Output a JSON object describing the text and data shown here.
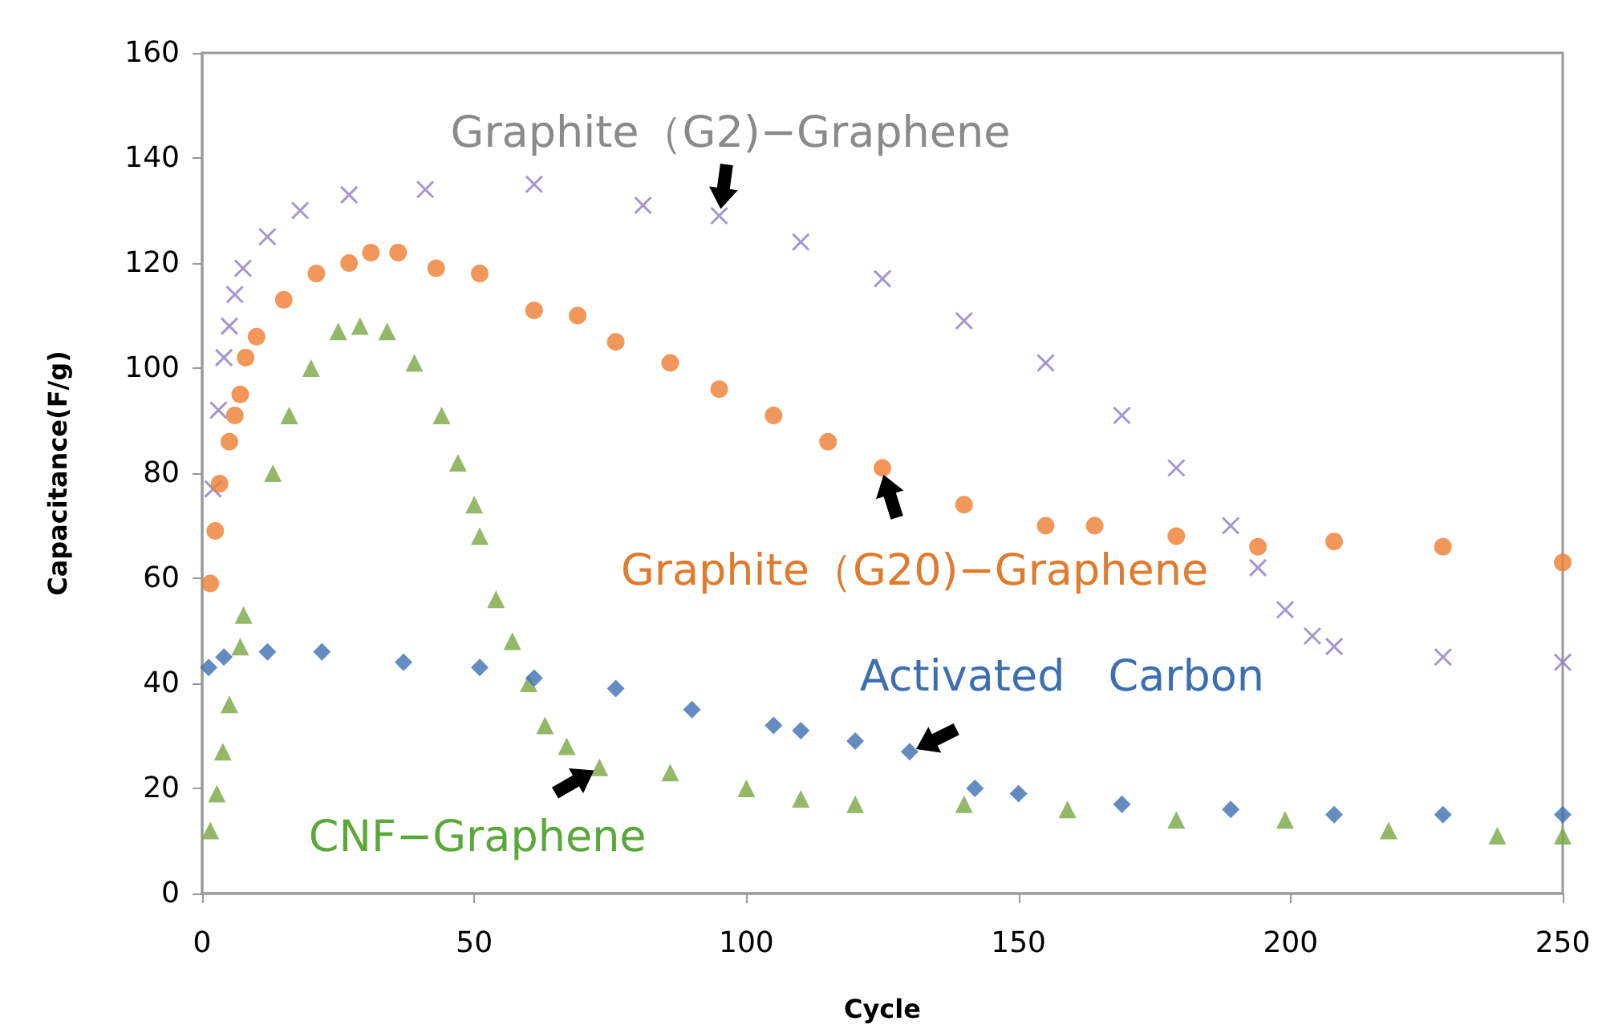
{
  "chart_data": {
    "type": "scatter",
    "xlabel": "Cycle",
    "ylabel": "Capacitance(F/g)",
    "xlim": [
      0,
      250
    ],
    "xticks": [
      0,
      50,
      100,
      150,
      200,
      250
    ],
    "ylim": [
      0,
      160
    ],
    "yticks": [
      0,
      20,
      40,
      60,
      80,
      100,
      120,
      140,
      160
    ],
    "grid": false,
    "series": [
      {
        "color": "#8e7cc3",
        "marker": "cross",
        "x": [
          2,
          3,
          4,
          5,
          6,
          7.5,
          12,
          18,
          27,
          41,
          61,
          81,
          95,
          110,
          125,
          140,
          155,
          169,
          179,
          189,
          194,
          199,
          204,
          208,
          228,
          250
        ],
        "values": [
          77,
          92,
          102,
          108,
          114,
          119,
          125,
          130,
          133,
          134,
          135,
          131,
          129,
          124,
          117,
          109,
          101,
          91,
          81,
          70,
          62,
          54,
          49,
          47,
          45,
          44
        ]
      },
      {
        "color": "#ed7d31",
        "marker": "circle",
        "x": [
          1.5,
          2.4,
          3.2,
          5,
          6,
          7,
          8,
          10,
          15,
          21,
          27,
          31,
          36,
          43,
          51,
          61,
          69,
          76,
          86,
          95,
          105,
          115,
          125,
          140,
          155,
          164,
          179,
          194,
          208,
          228,
          250
        ],
        "values": [
          59,
          69,
          78,
          86,
          91,
          95,
          102,
          106,
          113,
          118,
          120,
          122,
          122,
          119,
          118,
          111,
          110,
          105,
          101,
          96,
          91,
          86,
          81,
          74,
          70,
          70,
          68,
          66,
          67,
          66,
          63
        ]
      },
      {
        "color": "#77a642",
        "marker": "triangle",
        "x": [
          1.5,
          2.7,
          3.8,
          5,
          7,
          7.6,
          13,
          16,
          20,
          25,
          29,
          34,
          39,
          44,
          47,
          50,
          51,
          54,
          57,
          60,
          63,
          67,
          73,
          86,
          100,
          110,
          120,
          140,
          159,
          179,
          199,
          218,
          238,
          250
        ],
        "values": [
          12,
          19,
          27,
          36,
          47,
          53,
          80,
          91,
          100,
          107,
          108,
          107,
          101,
          91,
          82,
          74,
          68,
          56,
          48,
          40,
          32,
          28,
          24,
          23,
          20,
          18,
          17,
          17,
          16,
          14,
          14,
          12,
          11,
          11
        ]
      },
      {
        "color": "#3d6fb0",
        "marker": "diamond",
        "x": [
          1.2,
          4,
          12,
          22,
          37,
          51,
          61,
          76,
          90,
          105,
          110,
          120,
          130,
          142,
          150,
          169,
          189,
          208,
          228,
          250
        ],
        "values": [
          43,
          45,
          46,
          46,
          44,
          43,
          41,
          39,
          35,
          32,
          31,
          29,
          27,
          20,
          19,
          17,
          16,
          15,
          15,
          15
        ]
      }
    ],
    "annotations": [
      {
        "text": "Graphite（G2)−Graphene",
        "x": 95,
        "y": 129
      },
      {
        "text": "Graphite（G20)−Graphene",
        "x": 125,
        "y": 81
      },
      {
        "text": "Activated　Carbon",
        "x": 130,
        "y": 27
      },
      {
        "text": "CNF−Graphene",
        "x": 73,
        "y": 24
      }
    ]
  }
}
